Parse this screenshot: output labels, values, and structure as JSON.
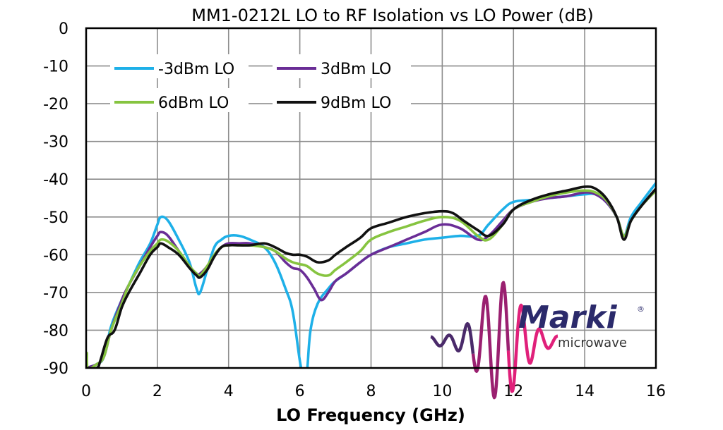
{
  "chart_data": {
    "type": "line",
    "title": "MM1-0212L LO to RF Isolation vs LO Power (dB)",
    "xlabel": "LO Frequency (GHz)",
    "ylabel": "",
    "xlim": [
      0,
      16
    ],
    "ylim": [
      -90,
      0
    ],
    "xticks": [
      "0",
      "2",
      "4",
      "6",
      "8",
      "10",
      "12",
      "14",
      "16"
    ],
    "yticks": [
      "0",
      "-10",
      "-20",
      "-30",
      "-40",
      "-50",
      "-60",
      "-70",
      "-80",
      "-90"
    ],
    "grid": true,
    "legend_position": "top-left",
    "colors": {
      "grid": "#8c8c8c",
      "frame": "#000000",
      "logo_text": "#2b2a6b",
      "logo_sub": "#333333",
      "logo_wave_dark": "#4a2a6a",
      "logo_wave_mid": "#9a2070",
      "logo_wave_pink": "#e0207a"
    },
    "series": [
      {
        "name": "-3dBm LO",
        "color": "#1eb0e8",
        "x": [
          0.0,
          0.3,
          0.5,
          0.7,
          1.0,
          1.2,
          1.5,
          1.8,
          2.0,
          2.1,
          2.3,
          2.6,
          2.9,
          3.1,
          3.2,
          3.4,
          3.6,
          3.8,
          4.0,
          4.3,
          4.6,
          5.0,
          5.3,
          5.6,
          5.8,
          6.0,
          6.1,
          6.2,
          6.3,
          6.5,
          6.8,
          7.0,
          7.3,
          7.7,
          8.0,
          8.5,
          9.0,
          9.5,
          10.0,
          10.5,
          11.0,
          11.3,
          11.7,
          12.0,
          12.5,
          13.0,
          13.5,
          14.0,
          14.3,
          14.6,
          14.9,
          15.1,
          15.3,
          15.6,
          16.0
        ],
        "y": [
          -90,
          -89,
          -87,
          -79,
          -72,
          -68,
          -62,
          -57,
          -52,
          -50,
          -51,
          -56,
          -62,
          -69,
          -70,
          -64,
          -58,
          -56,
          -55,
          -55,
          -56,
          -58,
          -62,
          -69,
          -75,
          -88,
          -92,
          -91,
          -80,
          -73,
          -69,
          -67,
          -65,
          -62,
          -60,
          -58,
          -57,
          -56,
          -55.5,
          -55,
          -55,
          -52,
          -48,
          -46,
          -45.5,
          -45,
          -44.5,
          -44,
          -44,
          -46,
          -50,
          -55,
          -50,
          -46,
          -41
        ]
      },
      {
        "name": "3dBm LO",
        "color": "#6a2d96",
        "x": [
          0.0,
          0.3,
          0.5,
          0.7,
          1.0,
          1.2,
          1.5,
          1.8,
          2.0,
          2.1,
          2.3,
          2.6,
          2.9,
          3.1,
          3.2,
          3.4,
          3.6,
          3.8,
          4.0,
          4.3,
          4.6,
          5.0,
          5.3,
          5.6,
          5.8,
          6.0,
          6.2,
          6.4,
          6.6,
          6.8,
          7.0,
          7.3,
          7.7,
          8.0,
          8.5,
          9.0,
          9.5,
          10.0,
          10.5,
          11.0,
          11.3,
          11.7,
          12.0,
          12.5,
          13.0,
          13.5,
          14.0,
          14.3,
          14.6,
          14.9,
          15.1,
          15.3,
          15.6,
          16.0
        ],
        "y": [
          -90,
          -89,
          -87,
          -80,
          -72,
          -68,
          -63,
          -58,
          -55,
          -54,
          -55,
          -59,
          -63,
          -65,
          -65,
          -63,
          -60,
          -58,
          -57,
          -57,
          -57,
          -58,
          -59,
          -62,
          -63.5,
          -64,
          -66,
          -69,
          -72,
          -70,
          -67,
          -65,
          -62,
          -60,
          -58,
          -56,
          -54,
          -52,
          -53,
          -56,
          -55,
          -51,
          -48,
          -46,
          -45,
          -44.5,
          -43.5,
          -44,
          -46,
          -50,
          -55,
          -51,
          -47,
          -43
        ]
      },
      {
        "name": "6dBm LO",
        "color": "#86c440",
        "x": [
          0.0,
          0.02,
          0.05,
          0.3,
          0.5,
          0.7,
          1.0,
          1.2,
          1.5,
          1.8,
          2.0,
          2.1,
          2.3,
          2.6,
          2.9,
          3.1,
          3.2,
          3.4,
          3.6,
          3.8,
          4.0,
          4.3,
          4.6,
          5.0,
          5.3,
          5.6,
          5.8,
          6.0,
          6.2,
          6.5,
          6.8,
          7.0,
          7.3,
          7.7,
          8.0,
          8.5,
          9.0,
          9.5,
          10.0,
          10.5,
          11.0,
          11.3,
          11.7,
          12.0,
          12.5,
          13.0,
          13.5,
          14.0,
          14.3,
          14.6,
          14.9,
          15.1,
          15.3,
          15.6,
          16.0
        ],
        "y": [
          -90,
          -86,
          -90,
          -89,
          -87,
          -80,
          -73,
          -68,
          -63,
          -59,
          -57,
          -56,
          -56.5,
          -59,
          -63,
          -65,
          -65.5,
          -63,
          -60,
          -58,
          -57.5,
          -57.5,
          -57.5,
          -58,
          -59,
          -61,
          -62,
          -62.5,
          -63,
          -65,
          -65.5,
          -64,
          -62,
          -59,
          -56,
          -54,
          -52.5,
          -51,
          -50,
          -51,
          -55,
          -56,
          -52,
          -48,
          -46,
          -44.5,
          -43.5,
          -43,
          -43.5,
          -45.5,
          -50,
          -55,
          -51,
          -47,
          -43
        ]
      },
      {
        "name": "9dBm LO",
        "color": "#111111",
        "x": [
          0.0,
          0.3,
          0.4,
          0.6,
          0.8,
          1.0,
          1.2,
          1.5,
          1.8,
          2.0,
          2.1,
          2.3,
          2.6,
          2.9,
          3.1,
          3.2,
          3.4,
          3.6,
          3.8,
          4.0,
          4.3,
          4.6,
          5.0,
          5.3,
          5.6,
          5.8,
          6.0,
          6.2,
          6.5,
          6.8,
          7.0,
          7.3,
          7.7,
          8.0,
          8.5,
          9.0,
          9.5,
          10.0,
          10.3,
          10.6,
          11.0,
          11.3,
          11.7,
          12.0,
          12.5,
          13.0,
          13.5,
          14.0,
          14.3,
          14.6,
          14.9,
          15.1,
          15.3,
          15.6,
          16.0
        ],
        "y": [
          -90,
          -90,
          -88,
          -82,
          -80,
          -74,
          -70,
          -65,
          -60,
          -58,
          -57,
          -58,
          -60,
          -63.5,
          -65.5,
          -66,
          -64,
          -60.5,
          -58,
          -57.5,
          -57.5,
          -57.5,
          -57,
          -58,
          -59.5,
          -60,
          -60,
          -60.5,
          -62,
          -61.5,
          -60,
          -58,
          -55.5,
          -53,
          -51.5,
          -50,
          -49,
          -48.5,
          -49,
          -51,
          -53.5,
          -55,
          -52,
          -48,
          -45.5,
          -44,
          -43,
          -42,
          -42.5,
          -45,
          -50,
          -56,
          -51,
          -47,
          -42.5
        ]
      }
    ]
  },
  "logo": {
    "brand": "Marki",
    "sub": "microwave",
    "mark": "®"
  }
}
